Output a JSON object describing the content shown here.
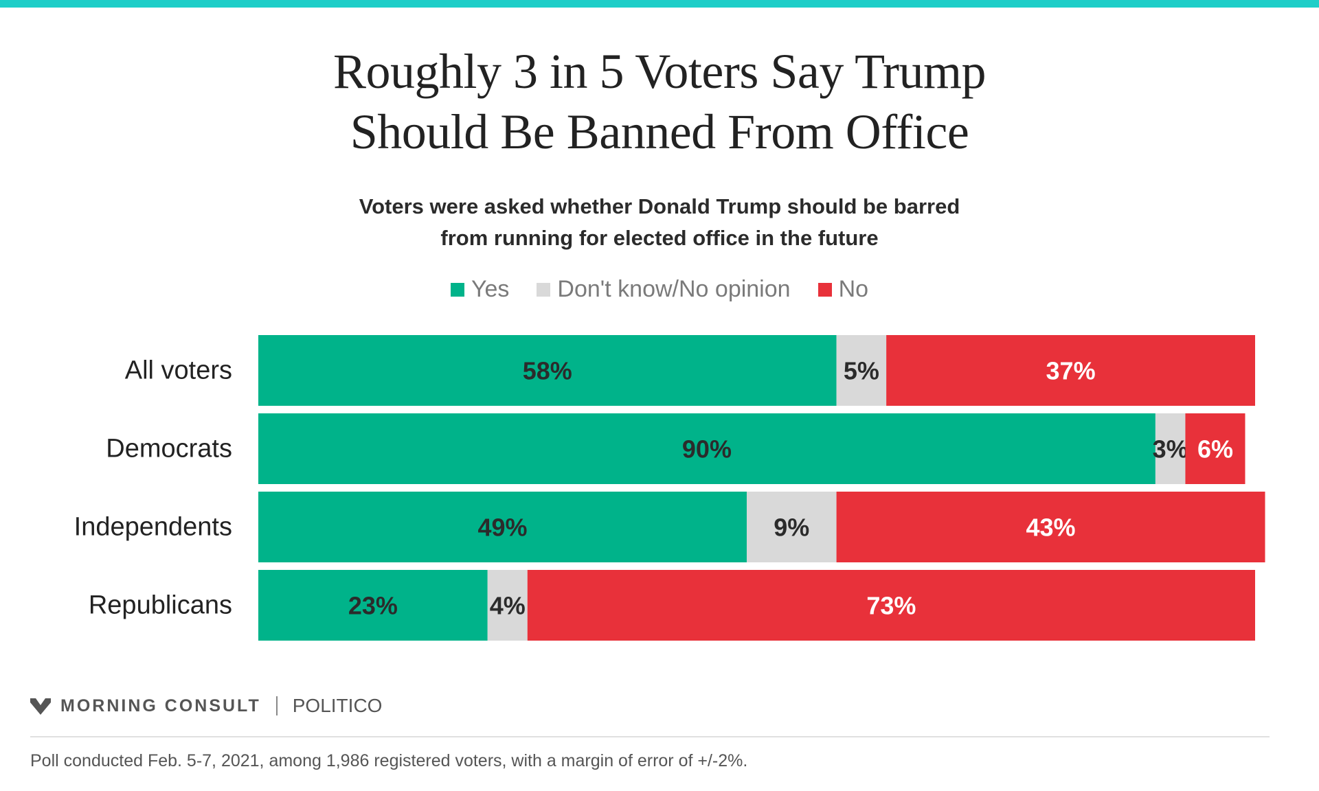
{
  "title_line1": "Roughly 3 in 5 Voters Say Trump",
  "title_line2": "Should Be Banned From Office",
  "subtitle_line1": "Voters were asked whether Donald Trump should be barred",
  "subtitle_line2": "from running for elected office in the future",
  "colors": {
    "top_bar": "#1ecec8",
    "yes": "#00b38a",
    "dont_know": "#d9d9d9",
    "no": "#e8313a",
    "label_dark": "#2b2b2b",
    "label_light": "#ffffff"
  },
  "chart_data": {
    "type": "bar",
    "orientation": "horizontal",
    "stacked": true,
    "categories": [
      "All voters",
      "Democrats",
      "Independents",
      "Republicans"
    ],
    "series": [
      {
        "name": "Yes",
        "values": [
          58,
          90,
          49,
          23
        ],
        "labels": [
          "58%",
          "90%",
          "49%",
          "23%"
        ]
      },
      {
        "name": "Don't know/No opinion",
        "values": [
          5,
          3,
          9,
          4
        ],
        "labels": [
          "5%",
          "3%",
          "9%",
          "4%"
        ]
      },
      {
        "name": "No",
        "values": [
          37,
          6,
          43,
          73
        ],
        "labels": [
          "37%",
          "6%",
          "43%",
          "73%"
        ]
      }
    ],
    "xlim": [
      0,
      100
    ],
    "legend_position": "top-center",
    "grid": false
  },
  "branding": {
    "logo_icon": "morning-consult-m-icon",
    "logo_text": "MORNING CONSULT",
    "partner": "POLITICO"
  },
  "footnote": "Poll conducted Feb. 5-7, 2021, among 1,986 registered voters, with a margin of error of +/-2%."
}
